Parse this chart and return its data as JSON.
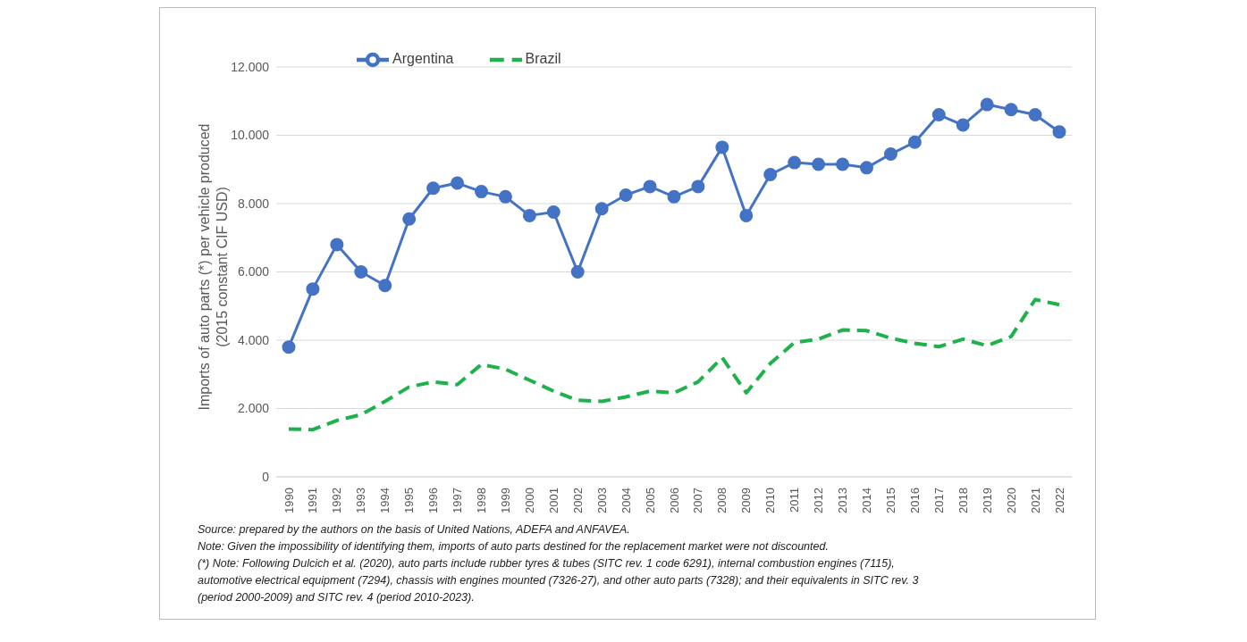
{
  "chart_data": {
    "type": "line",
    "ylabel": "Imports of auto parts (*) per vehicle produced\n(2015 constant CIF USD)",
    "categories": [
      "1990",
      "1991",
      "1992",
      "1993",
      "1994",
      "1995",
      "1996",
      "1997",
      "1998",
      "1999",
      "2000",
      "2001",
      "2002",
      "2003",
      "2004",
      "2005",
      "2006",
      "2007",
      "2008",
      "2009",
      "2010",
      "2011",
      "2012",
      "2013",
      "2014",
      "2015",
      "2016",
      "2017",
      "2018",
      "2019",
      "2020",
      "2021",
      "2022"
    ],
    "series": [
      {
        "name": "Argentina",
        "color": "#4472c4",
        "marker": "circle",
        "line_style": "solid",
        "values": [
          3800,
          5500,
          6800,
          6000,
          5600,
          7550,
          8450,
          8600,
          8350,
          8200,
          7650,
          7750,
          6000,
          7850,
          8250,
          8500,
          8200,
          8500,
          9650,
          7650,
          8850,
          9200,
          9150,
          9150,
          9050,
          9450,
          9800,
          10600,
          10300,
          10900,
          10750,
          10600,
          10100
        ]
      },
      {
        "name": "Brazil",
        "color": "#1fb14b",
        "marker": "none",
        "line_style": "dashed",
        "values": [
          1400,
          1380,
          1650,
          1820,
          2210,
          2630,
          2780,
          2700,
          3290,
          3150,
          2830,
          2510,
          2240,
          2210,
          2340,
          2510,
          2460,
          2780,
          3490,
          2460,
          3320,
          3930,
          4030,
          4300,
          4280,
          4060,
          3910,
          3810,
          4030,
          3840,
          4110,
          5190,
          5040
        ]
      }
    ],
    "ylim": [
      0,
      12000
    ],
    "yticks": [
      {
        "value": 0,
        "label": "0"
      },
      {
        "value": 2000,
        "label": "2.000"
      },
      {
        "value": 4000,
        "label": "4.000"
      },
      {
        "value": 6000,
        "label": "6.000"
      },
      {
        "value": 8000,
        "label": "8.000"
      },
      {
        "value": 10000,
        "label": "10.000"
      },
      {
        "value": 12000,
        "label": "12.000"
      }
    ],
    "grid": "y",
    "legend": "top left",
    "annotations": [
      "Source: prepared by the authors on the basis of United Nations, ADEFA and ANFAVEA.",
      "Note: Given the impossibility of identifying them, imports of auto parts destined for the replacement market were not discounted.",
      "(*) Note: Following Dulcich et al. (2020), auto parts include rubber tyres & tubes (SITC rev. 1 code 6291), internal combustion engines (7115), automotive electrical equipment (7294), chassis with engines mounted (7326-27), and other auto parts (7328); and their equivalents in SITC rev. 3 (period 2000-2009) and SITC rev. 4 (period 2010-2023)."
    ]
  }
}
